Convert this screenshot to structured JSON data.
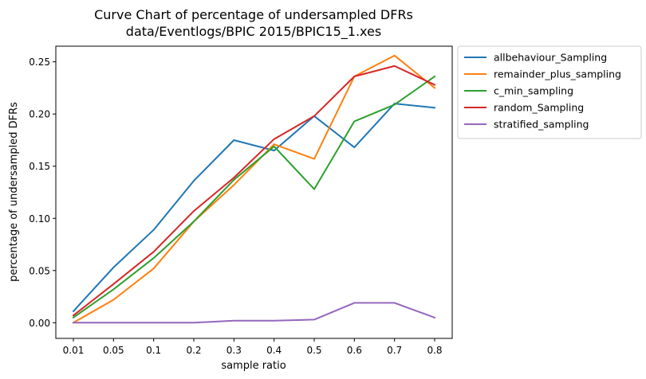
{
  "chart_data": {
    "type": "line",
    "title_line1": "Curve Chart of percentage of undersampled DFRs",
    "title_line2": "data/Eventlogs/BPIC 2015/BPIC15_1.xes",
    "xlabel": "sample ratio",
    "ylabel": "percentage of undersampled DFRs",
    "categories": [
      "0.01",
      "0.05",
      "0.1",
      "0.2",
      "0.3",
      "0.4",
      "0.5",
      "0.6",
      "0.7",
      "0.8"
    ],
    "ylim": [
      -0.015,
      0.265
    ],
    "yticks": [
      0.0,
      0.05,
      0.1,
      0.15,
      0.2,
      0.25
    ],
    "ytick_labels": [
      "0.00",
      "0.05",
      "0.10",
      "0.15",
      "0.20",
      "0.25"
    ],
    "grid": false,
    "legend_position": "outside-right-top",
    "series": [
      {
        "name": "allbehaviour_Sampling",
        "color": "#1f77b4",
        "values": [
          0.011,
          0.053,
          0.089,
          0.136,
          0.175,
          0.165,
          0.198,
          0.168,
          0.21,
          0.206
        ]
      },
      {
        "name": "remainder_plus_sampling",
        "color": "#ff7f0e",
        "values": [
          0.0,
          0.022,
          0.052,
          0.097,
          0.132,
          0.171,
          0.157,
          0.236,
          0.256,
          0.225
        ]
      },
      {
        "name": "c_min_sampling",
        "color": "#2ca02c",
        "values": [
          0.005,
          0.032,
          0.062,
          0.097,
          0.137,
          0.169,
          0.128,
          0.193,
          0.209,
          0.236
        ]
      },
      {
        "name": "random_Sampling",
        "color": "#d62728",
        "values": [
          0.007,
          0.037,
          0.068,
          0.107,
          0.139,
          0.176,
          0.198,
          0.236,
          0.246,
          0.228
        ]
      },
      {
        "name": "stratified_sampling",
        "color": "#9467bd",
        "values": [
          0.0,
          0.0,
          0.0,
          0.0,
          0.002,
          0.002,
          0.003,
          0.019,
          0.019,
          0.005
        ]
      }
    ]
  }
}
